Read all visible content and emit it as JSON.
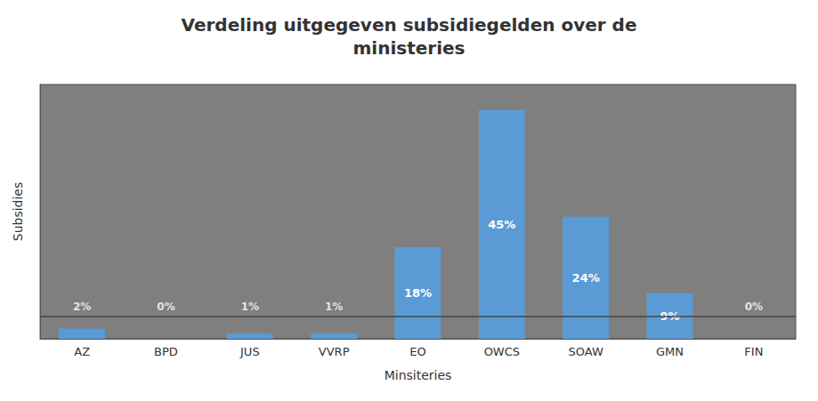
{
  "chart_data": {
    "type": "bar",
    "title": "Verdeling uitgegeven subsidiegelden over de\nministeries",
    "xlabel": "Minsiteries",
    "ylabel": "Subsidies",
    "categories": [
      "AZ",
      "BPD",
      "JUS",
      "VVRP",
      "EO",
      "OWCS",
      "SOAW",
      "GMN",
      "FIN"
    ],
    "values": [
      2,
      0,
      1,
      1,
      18,
      45,
      24,
      9,
      0
    ],
    "value_labels": [
      "2%",
      "0%",
      "1%",
      "1%",
      "18%",
      "45%",
      "24%",
      "9%",
      "0%"
    ],
    "data_labels": true,
    "color": "#5B9BD5",
    "ylim": [
      0,
      50
    ],
    "yticks": [],
    "tick_labels": "x",
    "grid": false,
    "hline": 4.5
  }
}
